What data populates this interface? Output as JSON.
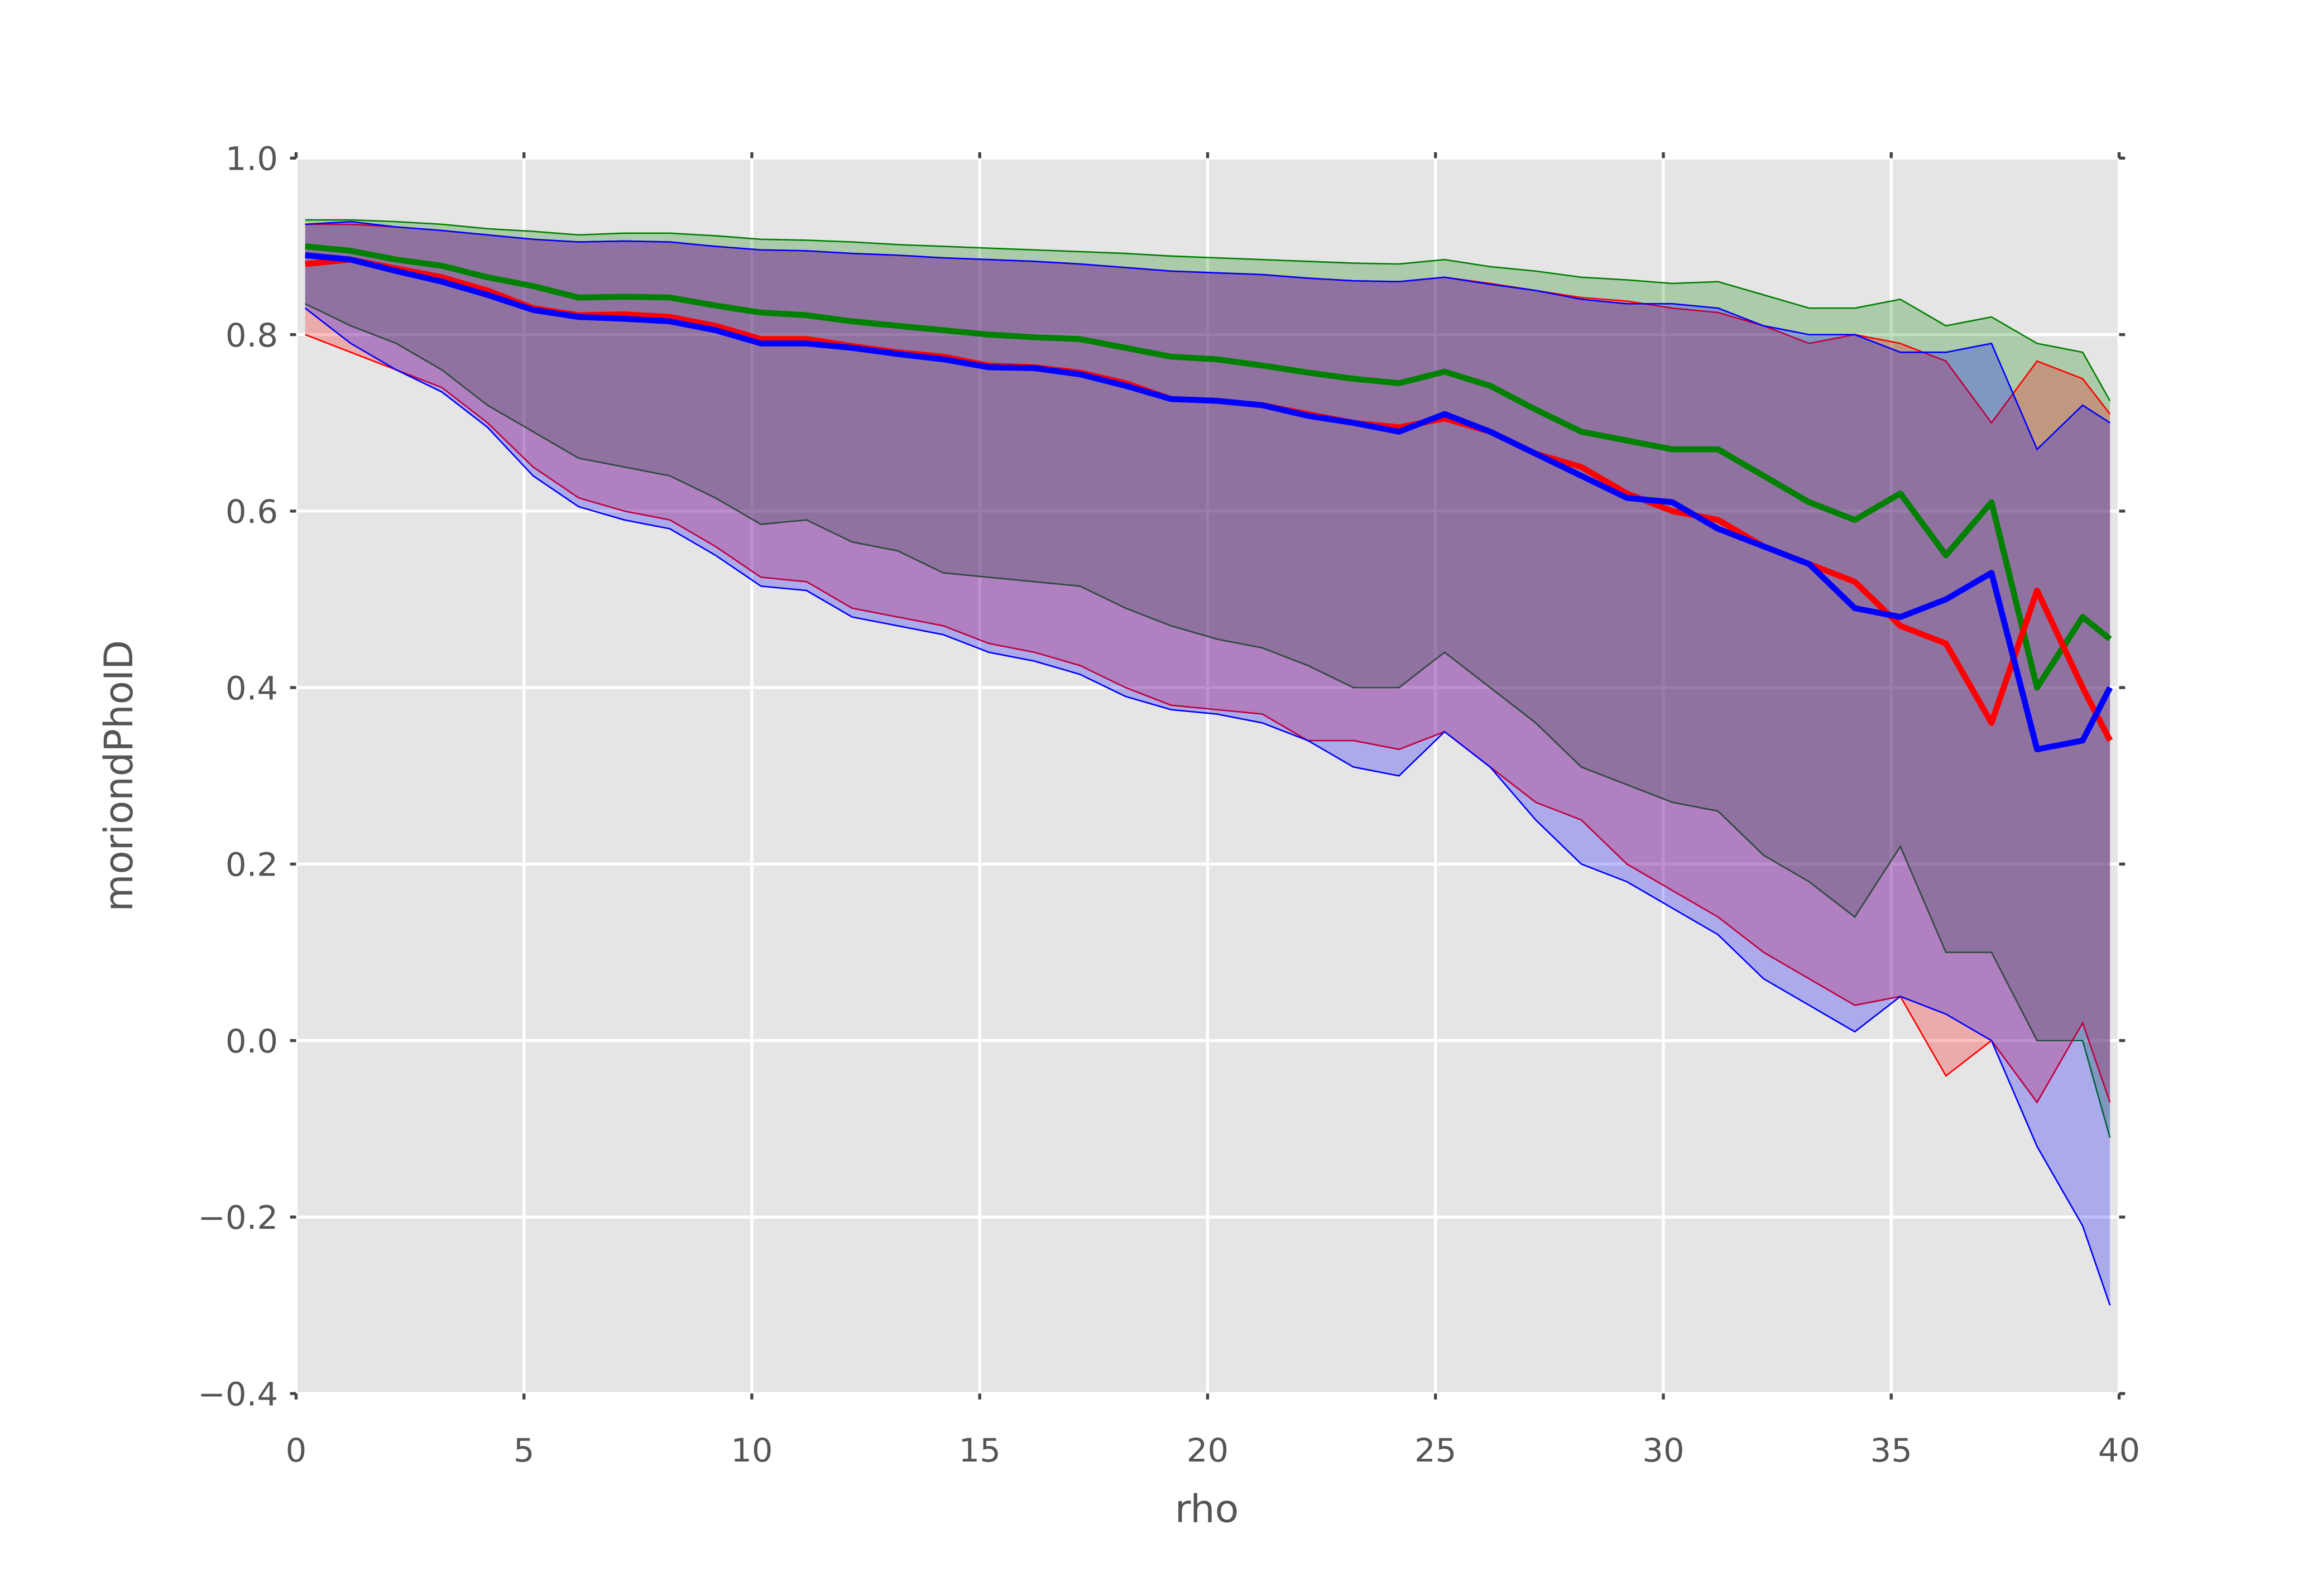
{
  "chart_data": {
    "type": "line",
    "xlabel": "rho",
    "ylabel": "moriondPhoID",
    "x": [
      0.2,
      1.2,
      2.2,
      3.2,
      4.2,
      5.2,
      6.2,
      7.2,
      8.2,
      9.2,
      10.2,
      11.2,
      12.2,
      13.2,
      14.2,
      15.2,
      16.2,
      17.2,
      18.2,
      19.2,
      20.2,
      21.2,
      22.2,
      23.2,
      24.2,
      25.2,
      26.2,
      27.2,
      28.2,
      29.2,
      30.2,
      31.2,
      32.2,
      33.2,
      34.2,
      35.2,
      36.2,
      37.2,
      38.2,
      39.2,
      39.8
    ],
    "xlim": [
      0,
      40
    ],
    "xticks": [
      0,
      5,
      10,
      15,
      20,
      25,
      30,
      35,
      40
    ],
    "ylim": [
      -0.4,
      1.0
    ],
    "yticks": [
      {
        "value": -0.4,
        "label": "−0.4"
      },
      {
        "value": -0.2,
        "label": "−0.2"
      },
      {
        "value": 0,
        "label": "0.0"
      },
      0.2,
      0.4,
      0.6,
      0.8,
      {
        "value": 1.0,
        "label": "1.0"
      }
    ],
    "grid": true,
    "band_opacity": 0.25,
    "series": [
      {
        "color": "#008000",
        "values": [
          0.9,
          0.895,
          0.885,
          0.878,
          0.865,
          0.855,
          0.842,
          0.843,
          0.842,
          0.833,
          0.825,
          0.822,
          0.815,
          0.81,
          0.805,
          0.8,
          0.797,
          0.795,
          0.785,
          0.775,
          0.772,
          0.765,
          0.757,
          0.75,
          0.745,
          0.758,
          0.742,
          0.715,
          0.69,
          0.68,
          0.67,
          0.67,
          0.64,
          0.61,
          0.59,
          0.62,
          0.55,
          0.61,
          0.4,
          0.48,
          0.455
        ],
        "lower": [
          0.835,
          0.81,
          0.79,
          0.76,
          0.72,
          0.69,
          0.66,
          0.65,
          0.64,
          0.615,
          0.585,
          0.59,
          0.565,
          0.555,
          0.53,
          0.525,
          0.52,
          0.515,
          0.49,
          0.47,
          0.455,
          0.445,
          0.425,
          0.4,
          0.4,
          0.44,
          0.4,
          0.36,
          0.31,
          0.29,
          0.27,
          0.26,
          0.21,
          0.18,
          0.14,
          0.22,
          0.1,
          0.1,
          0.0,
          0.0,
          -0.11
        ],
        "upper": [
          0.93,
          0.93,
          0.928,
          0.925,
          0.92,
          0.917,
          0.913,
          0.915,
          0.915,
          0.912,
          0.908,
          0.907,
          0.905,
          0.902,
          0.9,
          0.898,
          0.896,
          0.894,
          0.892,
          0.889,
          0.887,
          0.885,
          0.883,
          0.881,
          0.88,
          0.885,
          0.877,
          0.872,
          0.865,
          0.862,
          0.858,
          0.86,
          0.845,
          0.83,
          0.83,
          0.84,
          0.81,
          0.82,
          0.79,
          0.78,
          0.725
        ]
      },
      {
        "color": "#ff0000",
        "values": [
          0.88,
          0.885,
          0.875,
          0.865,
          0.85,
          0.83,
          0.822,
          0.823,
          0.82,
          0.81,
          0.795,
          0.795,
          0.787,
          0.78,
          0.775,
          0.765,
          0.763,
          0.757,
          0.745,
          0.727,
          0.725,
          0.72,
          0.71,
          0.7,
          0.695,
          0.705,
          0.69,
          0.665,
          0.65,
          0.62,
          0.6,
          0.59,
          0.56,
          0.54,
          0.52,
          0.47,
          0.45,
          0.36,
          0.51,
          0.4,
          0.34
        ],
        "lower": [
          0.8,
          0.78,
          0.76,
          0.74,
          0.7,
          0.65,
          0.615,
          0.6,
          0.59,
          0.56,
          0.525,
          0.52,
          0.49,
          0.48,
          0.47,
          0.45,
          0.44,
          0.425,
          0.4,
          0.38,
          0.375,
          0.37,
          0.34,
          0.34,
          0.33,
          0.35,
          0.31,
          0.27,
          0.25,
          0.2,
          0.17,
          0.14,
          0.1,
          0.07,
          0.04,
          0.05,
          -0.04,
          0.0,
          -0.07,
          0.02,
          -0.07
        ],
        "upper": [
          0.925,
          0.925,
          0.922,
          0.918,
          0.913,
          0.908,
          0.905,
          0.906,
          0.905,
          0.9,
          0.896,
          0.895,
          0.892,
          0.89,
          0.887,
          0.885,
          0.883,
          0.88,
          0.876,
          0.872,
          0.87,
          0.868,
          0.864,
          0.861,
          0.86,
          0.865,
          0.858,
          0.85,
          0.842,
          0.838,
          0.83,
          0.825,
          0.81,
          0.79,
          0.8,
          0.79,
          0.77,
          0.7,
          0.77,
          0.75,
          0.71
        ]
      },
      {
        "color": "#0000ff",
        "values": [
          0.89,
          0.885,
          0.872,
          0.86,
          0.845,
          0.828,
          0.82,
          0.818,
          0.815,
          0.805,
          0.79,
          0.79,
          0.785,
          0.778,
          0.772,
          0.763,
          0.762,
          0.755,
          0.742,
          0.727,
          0.725,
          0.72,
          0.708,
          0.7,
          0.69,
          0.71,
          0.69,
          0.665,
          0.64,
          0.615,
          0.61,
          0.58,
          0.56,
          0.54,
          0.49,
          0.48,
          0.5,
          0.53,
          0.33,
          0.34,
          0.4
        ],
        "lower": [
          0.83,
          0.79,
          0.76,
          0.735,
          0.695,
          0.64,
          0.605,
          0.59,
          0.58,
          0.55,
          0.515,
          0.51,
          0.48,
          0.47,
          0.46,
          0.44,
          0.43,
          0.415,
          0.39,
          0.375,
          0.37,
          0.36,
          0.34,
          0.31,
          0.3,
          0.35,
          0.31,
          0.25,
          0.2,
          0.18,
          0.15,
          0.12,
          0.07,
          0.04,
          0.01,
          0.05,
          0.03,
          0.0,
          -0.12,
          -0.21,
          -0.3
        ],
        "upper": [
          0.925,
          0.928,
          0.922,
          0.918,
          0.913,
          0.908,
          0.905,
          0.906,
          0.905,
          0.9,
          0.896,
          0.895,
          0.892,
          0.89,
          0.887,
          0.885,
          0.883,
          0.88,
          0.876,
          0.872,
          0.87,
          0.868,
          0.864,
          0.861,
          0.86,
          0.865,
          0.857,
          0.85,
          0.84,
          0.835,
          0.835,
          0.83,
          0.81,
          0.8,
          0.8,
          0.78,
          0.78,
          0.79,
          0.67,
          0.72,
          0.7
        ]
      }
    ]
  }
}
